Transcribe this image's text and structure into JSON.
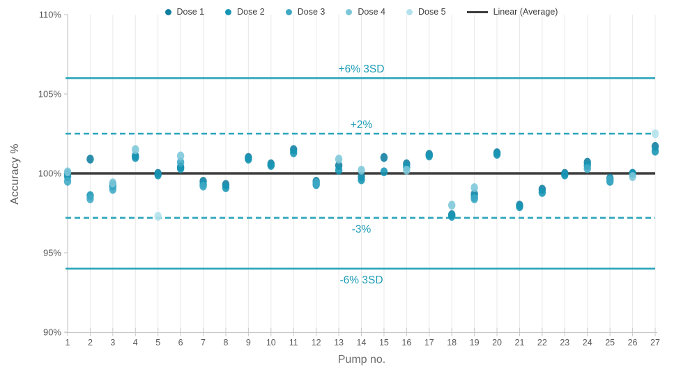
{
  "chart_data": {
    "type": "scatter",
    "title": "",
    "xlabel": "Pump no.",
    "ylabel": "Accuracy %",
    "xlim": [
      1,
      27
    ],
    "ylim": [
      90,
      110
    ],
    "grid": "vertical",
    "legend_position": "top-center",
    "yticks": [
      {
        "value": 90,
        "label": "90%"
      },
      {
        "value": 95,
        "label": "95%"
      },
      {
        "value": 100,
        "label": "100%"
      },
      {
        "value": 105,
        "label": "105%"
      },
      {
        "value": 110,
        "label": "110%"
      }
    ],
    "xticks": [
      "1",
      "2",
      "3",
      "4",
      "5",
      "6",
      "7",
      "8",
      "9",
      "10",
      "11",
      "12",
      "13",
      "14",
      "15",
      "16",
      "17",
      "18",
      "19",
      "20",
      "21",
      "22",
      "23",
      "24",
      "25",
      "26",
      "27"
    ],
    "reference_lines": [
      {
        "label": "+6% 3SD",
        "value": 106.0,
        "style": "solid",
        "color": "#2aa5ba",
        "label_position": "above"
      },
      {
        "label": "+2%",
        "value": 102.5,
        "style": "dashed",
        "color": "#2aa5ba",
        "label_position": "above"
      },
      {
        "label": "",
        "value": 100.0,
        "style": "solid",
        "color": "#3d3d3d",
        "label_position": "none"
      },
      {
        "label": "-3%",
        "value": 97.2,
        "style": "dashed",
        "color": "#2aa5ba",
        "label_position": "below"
      },
      {
        "label": "-6% 3SD",
        "value": 94.0,
        "style": "solid",
        "color": "#2aa5ba",
        "label_position": "below"
      }
    ],
    "series": [
      {
        "name": "Dose 1",
        "color": "#0f7ea0",
        "points": [
          [
            1,
            100.0
          ],
          [
            2,
            100.9
          ],
          [
            3,
            99.3
          ],
          [
            4,
            101.1
          ],
          [
            5,
            100.0
          ],
          [
            6,
            100.4
          ],
          [
            7,
            99.5
          ],
          [
            8,
            99.3
          ],
          [
            9,
            101.0
          ],
          [
            10,
            100.6
          ],
          [
            11,
            101.5
          ],
          [
            12,
            99.5
          ],
          [
            13,
            100.5
          ],
          [
            14,
            99.8
          ],
          [
            15,
            101.0
          ],
          [
            16,
            100.6
          ],
          [
            17,
            101.2
          ],
          [
            18,
            97.4
          ],
          [
            19,
            98.7
          ],
          [
            20,
            101.3
          ],
          [
            21,
            98.0
          ],
          [
            22,
            99.0
          ],
          [
            23,
            100.0
          ],
          [
            24,
            100.7
          ],
          [
            25,
            99.7
          ],
          [
            26,
            100.0
          ],
          [
            27,
            101.7
          ]
        ]
      },
      {
        "name": "Dose 2",
        "color": "#1795b4",
        "points": [
          [
            1,
            99.8
          ],
          [
            2,
            98.6
          ],
          [
            3,
            99.2
          ],
          [
            4,
            101.0
          ],
          [
            5,
            99.9
          ],
          [
            6,
            100.3
          ],
          [
            7,
            99.3
          ],
          [
            8,
            99.1
          ],
          [
            9,
            100.9
          ],
          [
            10,
            100.5
          ],
          [
            11,
            101.3
          ],
          [
            12,
            99.3
          ],
          [
            13,
            100.2
          ],
          [
            14,
            99.6
          ],
          [
            15,
            100.1
          ],
          [
            16,
            100.4
          ],
          [
            17,
            101.1
          ],
          [
            18,
            97.3
          ],
          [
            19,
            98.5
          ],
          [
            20,
            101.2
          ],
          [
            21,
            97.9
          ],
          [
            22,
            98.8
          ],
          [
            23,
            99.9
          ],
          [
            24,
            100.5
          ],
          [
            25,
            99.5
          ],
          [
            26,
            100.0
          ],
          [
            27,
            101.4
          ]
        ]
      },
      {
        "name": "Dose 3",
        "color": "#3fa9c5",
        "points": [
          [
            1,
            99.5
          ],
          [
            2,
            98.4
          ],
          [
            3,
            99.0
          ],
          [
            6,
            100.7
          ],
          [
            7,
            99.2
          ],
          [
            12,
            99.4
          ],
          [
            19,
            98.4
          ],
          [
            24,
            100.3
          ],
          [
            25,
            99.6
          ]
        ]
      },
      {
        "name": "Dose 4",
        "color": "#7dc7da",
        "points": [
          [
            1,
            100.1
          ],
          [
            3,
            99.4
          ],
          [
            4,
            101.5
          ],
          [
            6,
            101.1
          ],
          [
            13,
            100.9
          ],
          [
            14,
            100.2
          ],
          [
            16,
            100.2
          ],
          [
            18,
            98.0
          ],
          [
            19,
            99.1
          ],
          [
            26,
            99.8
          ]
        ]
      },
      {
        "name": "Dose 5",
        "color": "#b3e1ec",
        "points": [
          [
            5,
            97.3
          ],
          [
            27,
            102.5
          ]
        ]
      }
    ],
    "legend": [
      {
        "label": "Dose 1",
        "marker": "dot",
        "color": "#0f7ea0"
      },
      {
        "label": "Dose 2",
        "marker": "dot",
        "color": "#1795b4"
      },
      {
        "label": "Dose 3",
        "marker": "dot",
        "color": "#3fa9c5"
      },
      {
        "label": "Dose 4",
        "marker": "dot",
        "color": "#7dc7da"
      },
      {
        "label": "Dose 5",
        "marker": "dot",
        "color": "#b3e1ec"
      },
      {
        "label": "Linear (Average)",
        "marker": "line",
        "color": "#3d3d3d"
      }
    ]
  },
  "colors": {
    "gridline": "#e8e8e8",
    "axis": "#c9c9c9",
    "tick_text": "#595959",
    "ref_label_text": "#1b9cb5",
    "background": "#ffffff"
  }
}
